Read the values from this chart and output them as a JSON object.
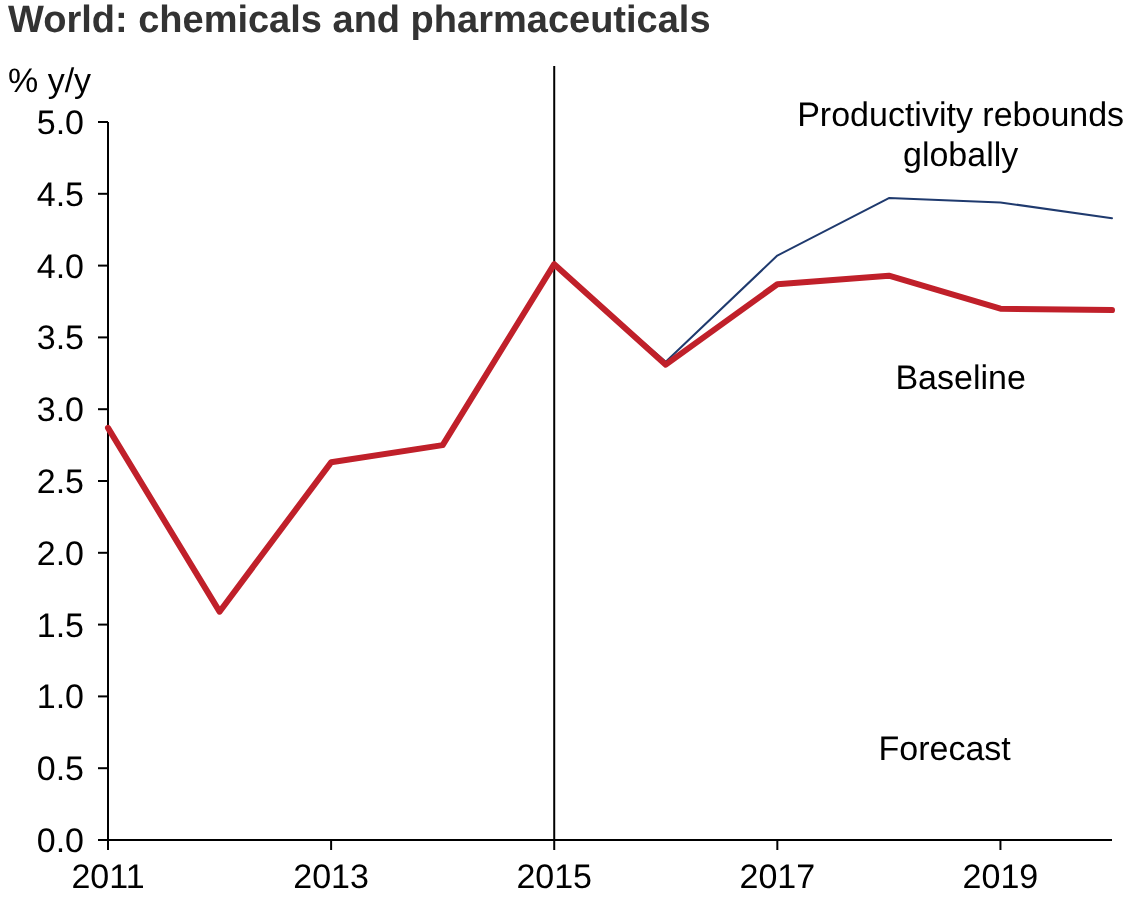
{
  "chart_data": {
    "type": "line",
    "title": "World: chemicals and pharmaceuticals",
    "ylabel": "% y/y",
    "x": [
      2011,
      2012,
      2013,
      2014,
      2015,
      2016,
      2017,
      2018,
      2019,
      2020
    ],
    "series": [
      {
        "name": "Productivity rebounds globally",
        "color": "#1f3a6e",
        "x": [
          2015,
          2016,
          2017,
          2018,
          2019,
          2020
        ],
        "values": [
          4.0,
          3.33,
          4.07,
          4.47,
          4.44,
          4.33
        ]
      },
      {
        "name": "Baseline",
        "color": "#c0202a",
        "values": [
          2.87,
          1.59,
          2.63,
          2.75,
          4.01,
          3.31,
          3.87,
          3.93,
          3.7,
          3.69
        ]
      }
    ],
    "xlim": [
      2011,
      2020
    ],
    "xticks": [
      2011,
      2013,
      2015,
      2017,
      2019
    ],
    "ylim": [
      0,
      5
    ],
    "yticks": [
      {
        "value": 0,
        "label": "0.0"
      },
      {
        "value": 0.5,
        "label": "0.5"
      },
      {
        "value": 1,
        "label": "1.0"
      },
      {
        "value": 1.5,
        "label": "1.5"
      },
      {
        "value": 2,
        "label": "2.0"
      },
      {
        "value": 2.5,
        "label": "2.5"
      },
      {
        "value": 3,
        "label": "3.0"
      },
      {
        "value": 3.5,
        "label": "3.5"
      },
      {
        "value": 4,
        "label": "4.0"
      },
      {
        "value": 4.5,
        "label": "4.5"
      },
      {
        "value": 5,
        "label": "5.0"
      }
    ],
    "ref_lines": [
      {
        "axis": "x",
        "value": 2015,
        "color": "#000000"
      }
    ],
    "annotations": [
      "Forecast"
    ],
    "grid": false,
    "line_style": "solid"
  }
}
